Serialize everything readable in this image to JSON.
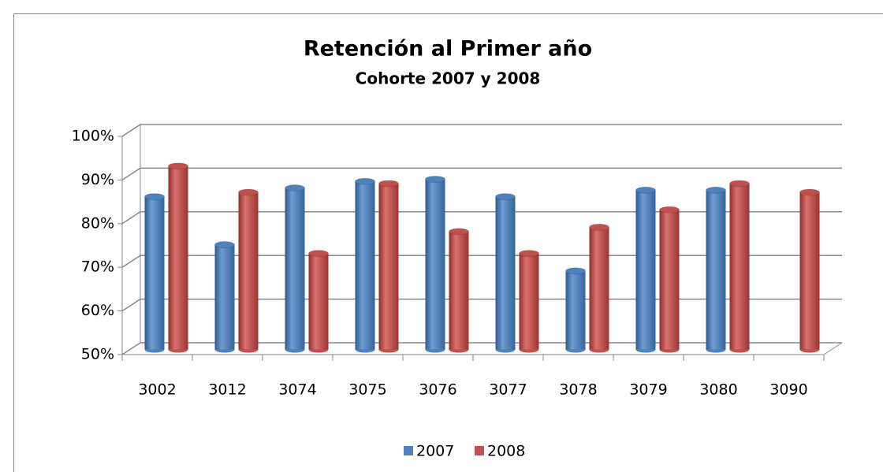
{
  "chart_data": {
    "type": "bar",
    "title": "Retención al Primer año",
    "subtitle": "Cohorte 2007 y 2008",
    "categories": [
      "3002",
      "3012",
      "3074",
      "3075",
      "3076",
      "3077",
      "3078",
      "3079",
      "3080",
      "3090"
    ],
    "series": [
      {
        "name": "2007",
        "color": "#4f81bd",
        "values": [
          85,
          74,
          87,
          88.5,
          89,
          85,
          68,
          86.5,
          86.5,
          null
        ]
      },
      {
        "name": "2008",
        "color": "#c0504d",
        "values": [
          92,
          86,
          72,
          88,
          77,
          72,
          78,
          82,
          88,
          86
        ]
      }
    ],
    "ylim": [
      50,
      100
    ],
    "yticks": [
      {
        "value": 50,
        "label": "50%"
      },
      {
        "value": 60,
        "label": "60%"
      },
      {
        "value": 70,
        "label": "70%"
      },
      {
        "value": 80,
        "label": "80%"
      },
      {
        "value": 90,
        "label": "90%"
      },
      {
        "value": 100,
        "label": "100%"
      }
    ],
    "grid": true,
    "legend": "bottom"
  }
}
